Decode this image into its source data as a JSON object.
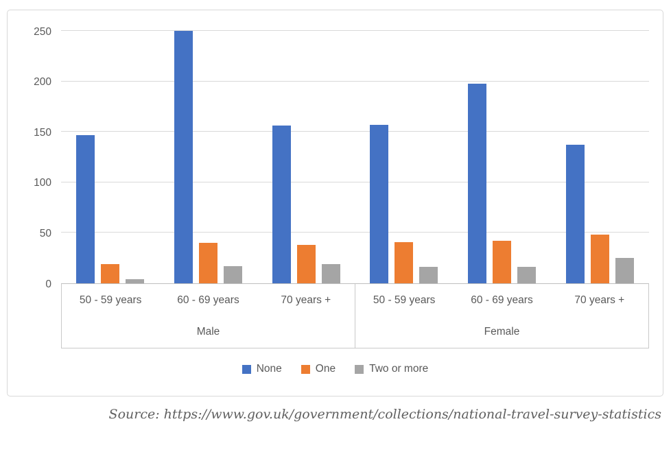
{
  "source_line": "Source: https://www.gov.uk/government/collections/national-travel-survey-statistics",
  "chart_data": {
    "type": "bar",
    "title": "",
    "xlabel": "",
    "ylabel": "",
    "ylim": [
      0,
      250
    ],
    "y_ticks": [
      0,
      50,
      100,
      150,
      200,
      250
    ],
    "grid": true,
    "legend_position": "bottom",
    "groups": [
      {
        "label": "Male",
        "categories": [
          "50 - 59 years",
          "60 - 69 years",
          "70 years +"
        ]
      },
      {
        "label": "Female",
        "categories": [
          "50 - 59 years",
          "60 - 69 years",
          "70 years +"
        ]
      }
    ],
    "series": [
      {
        "name": "None",
        "color": "#4472C4",
        "values": [
          147,
          250,
          156,
          157,
          198,
          137
        ]
      },
      {
        "name": "One",
        "color": "#ED7D31",
        "values": [
          19,
          40,
          38,
          41,
          42,
          48
        ]
      },
      {
        "name": "Two or more",
        "color": "#A5A5A5",
        "values": [
          4,
          17,
          19,
          16,
          16,
          25
        ]
      }
    ]
  }
}
